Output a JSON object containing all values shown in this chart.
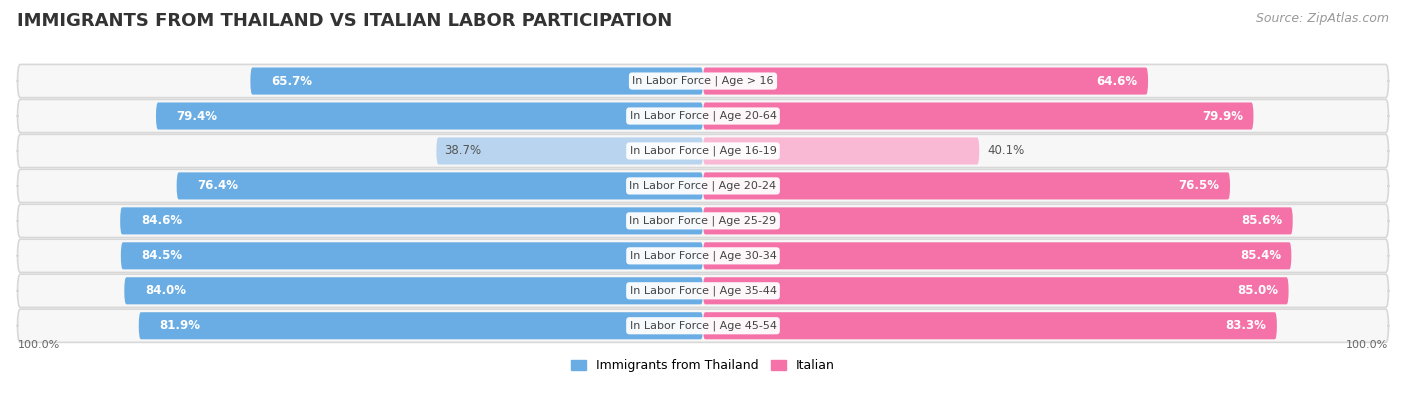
{
  "title": "IMMIGRANTS FROM THAILAND VS ITALIAN LABOR PARTICIPATION",
  "source": "Source: ZipAtlas.com",
  "categories": [
    "In Labor Force | Age > 16",
    "In Labor Force | Age 20-64",
    "In Labor Force | Age 16-19",
    "In Labor Force | Age 20-24",
    "In Labor Force | Age 25-29",
    "In Labor Force | Age 30-34",
    "In Labor Force | Age 35-44",
    "In Labor Force | Age 45-54"
  ],
  "thailand_values": [
    65.7,
    79.4,
    38.7,
    76.4,
    84.6,
    84.5,
    84.0,
    81.9
  ],
  "italian_values": [
    64.6,
    79.9,
    40.1,
    76.5,
    85.6,
    85.4,
    85.0,
    83.3
  ],
  "thailand_color": "#6aade4",
  "thailand_color_light": "#b8d4ee",
  "italian_color": "#f472a8",
  "italian_color_light": "#f9b8d3",
  "row_bg_color": "#ebebeb",
  "row_inner_bg": "#f7f7f7",
  "title_fontsize": 13,
  "source_fontsize": 9,
  "value_fontsize": 8.5,
  "cat_fontsize": 8,
  "max_value": 100.0,
  "legend_label_thailand": "Immigrants from Thailand",
  "legend_label_italian": "Italian"
}
